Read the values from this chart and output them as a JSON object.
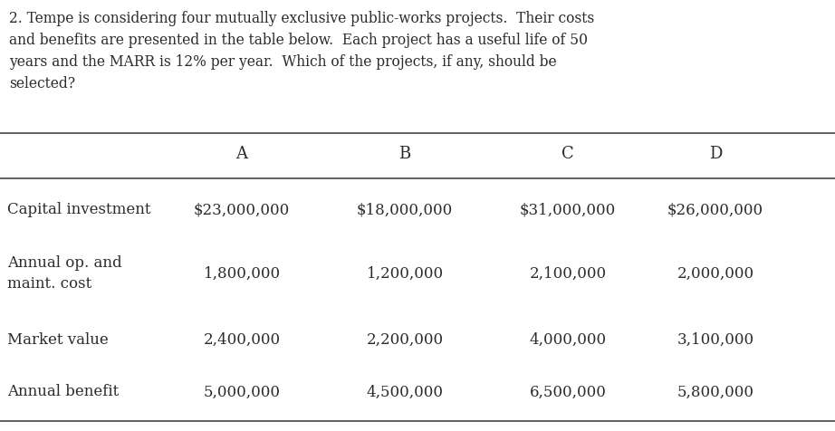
{
  "question_text": "2. Tempe is considering four mutually exclusive public-works projects.  Their costs\nand benefits are presented in the table below.  Each project has a useful life of 50\nyears and the MARR is 12% per year.  Which of the projects, if any, should be\nselected?",
  "columns": [
    "",
    "A",
    "B",
    "C",
    "D"
  ],
  "rows": [
    {
      "label": "Capital investment",
      "label2": "",
      "values": [
        "$23,000,000",
        "$18,000,000",
        "$31,000,000",
        "$26,000,000"
      ]
    },
    {
      "label": "Annual op. and",
      "label2": "maint. cost",
      "values": [
        "1,800,000",
        "1,200,000",
        "2,100,000",
        "2,000,000"
      ]
    },
    {
      "label": "Market value",
      "label2": "",
      "values": [
        "2,400,000",
        "2,200,000",
        "4,000,000",
        "3,100,000"
      ]
    },
    {
      "label": "Annual benefit",
      "label2": "",
      "values": [
        "5,000,000",
        "4,500,000",
        "6,500,000",
        "5,800,000"
      ]
    }
  ],
  "bg_color": "#ffffff",
  "text_color": "#2b2b2b",
  "table_line_color": "#555555",
  "question_fontsize": 11.2,
  "header_fontsize": 13,
  "cell_fontsize": 12,
  "label_fontsize": 12
}
